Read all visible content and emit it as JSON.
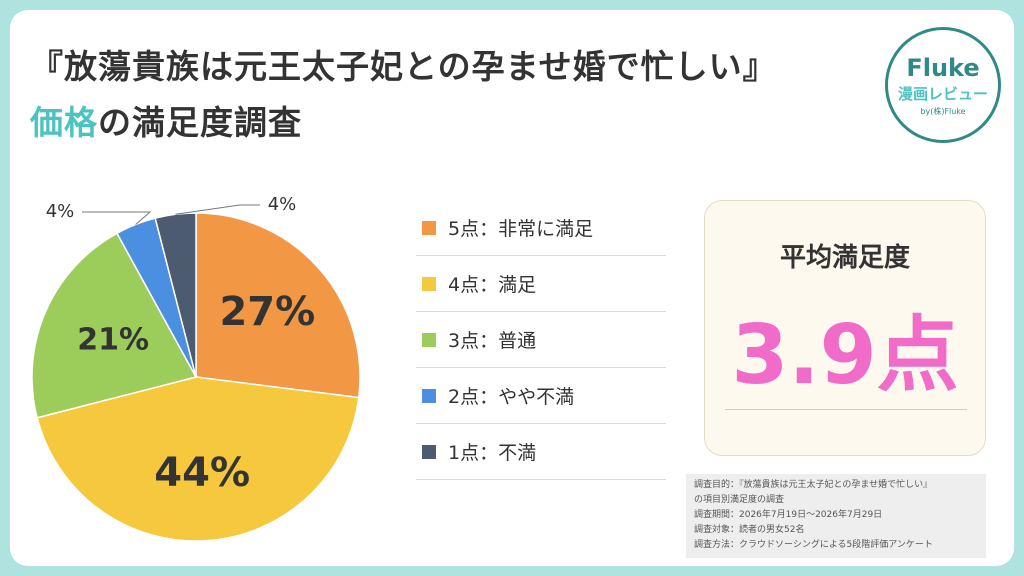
{
  "title": {
    "line1": "『放蕩貴族は元王太子妃との孕ませ婚で忙しい』",
    "line2_highlight": "価格",
    "line2_rest": "の満足度調査"
  },
  "logo": {
    "name": "Fluke",
    "subtitle": "漫画レビュー",
    "by": "by(株)Fluke"
  },
  "chart_data": {
    "type": "pie",
    "categories": [
      "5点：非常に満足",
      "4点：満足",
      "3点：普通",
      "2点：やや不満",
      "1点：不満"
    ],
    "values": [
      27,
      44,
      21,
      4,
      4
    ],
    "labels": [
      "27%",
      "44%",
      "21%",
      "4%",
      "4%"
    ],
    "colors": [
      "#f29744",
      "#f6c83e",
      "#9ccc5a",
      "#4b8fe0",
      "#4d5b70"
    ],
    "legend_position": "right"
  },
  "legend": {
    "items": [
      {
        "label": "5点：非常に満足",
        "color": "#f29744"
      },
      {
        "label": "4点：満足",
        "color": "#f6c83e"
      },
      {
        "label": "3点：普通",
        "color": "#9ccc5a"
      },
      {
        "label": "2点：やや不満",
        "color": "#4b8fe0"
      },
      {
        "label": "1点：不満",
        "color": "#4d5b70"
      }
    ]
  },
  "average": {
    "label": "平均満足度",
    "value": "3.9点"
  },
  "notes": [
    "調査目的：『放蕩貴族は元王太子妃との孕ませ婚で忙しい』",
    "の項目別満足度の調査",
    "調査期間：2026年7月19日〜2026年7月29日",
    "調査対象：読者の男女52名",
    "調査方法：クラウドソーシングによる5段階評価アンケート"
  ]
}
